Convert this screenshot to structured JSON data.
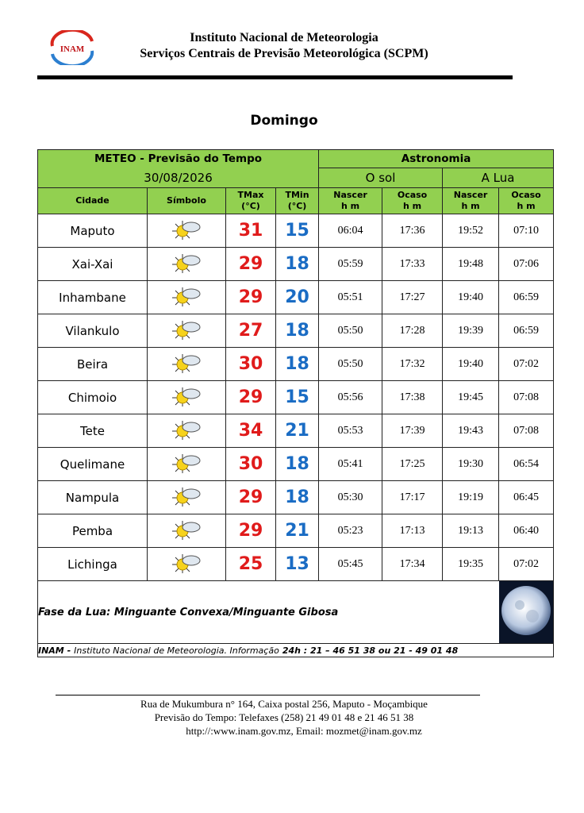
{
  "header": {
    "logo": "INAM",
    "line1": "Instituto Nacional de Meteorologia",
    "line2": "Serviços Centrais de Previsão Meteorológica (SCPM)"
  },
  "day": "Domingo",
  "table": {
    "meteo_title": "METEO - Previsão do Tempo",
    "date": "30/08/2026",
    "astro_title": "Astronomia",
    "sun": "O sol",
    "moon": "A Lua",
    "columns": [
      [
        "Cidade"
      ],
      [
        "Símbolo"
      ],
      [
        "TMax",
        "(°C)"
      ],
      [
        "TMin",
        "(°C)"
      ],
      [
        "Nascer",
        "h m"
      ],
      [
        "Ocaso",
        "h m"
      ],
      [
        "Nascer",
        "h m"
      ],
      [
        "Ocaso",
        "h m"
      ]
    ],
    "rows": [
      [
        "Maputo",
        31,
        15,
        "06:04",
        "17:36",
        "19:52",
        "07:10"
      ],
      [
        "Xai-Xai",
        29,
        18,
        "05:59",
        "17:33",
        "19:48",
        "07:06"
      ],
      [
        "Inhambane",
        29,
        20,
        "05:51",
        "17:27",
        "19:40",
        "06:59"
      ],
      [
        "Vilankulo",
        27,
        18,
        "05:50",
        "17:28",
        "19:39",
        "06:59"
      ],
      [
        "Beira",
        30,
        18,
        "05:50",
        "17:32",
        "19:40",
        "07:02"
      ],
      [
        "Chimoio",
        29,
        15,
        "05:56",
        "17:38",
        "19:45",
        "07:08"
      ],
      [
        "Tete",
        34,
        21,
        "05:53",
        "17:39",
        "19:43",
        "07:08"
      ],
      [
        "Quelimane",
        30,
        18,
        "05:41",
        "17:25",
        "19:30",
        "06:54"
      ],
      [
        "Nampula",
        29,
        18,
        "05:30",
        "17:17",
        "19:19",
        "06:45"
      ],
      [
        "Pemba",
        29,
        21,
        "05:23",
        "17:13",
        "19:13",
        "06:40"
      ],
      [
        "Lichinga",
        25,
        13,
        "05:45",
        "17:34",
        "19:35",
        "07:02"
      ]
    ]
  },
  "moon_phase": "Fase da Lua: Minguante Convexa/Minguante Gibosa",
  "footer_note": [
    "INAM -",
    "Instituto Nacional de Meteorologia. Informação",
    "24h : 21 – 46 51 38 ou 21 - 49 01 48"
  ],
  "address": [
    "Rua de Mukumbura n° 164, Caixa postal  256, Maputo -  Moçambique",
    "Previsão do Tempo: Telefaxes (258) 21 49 01 48 e  21 46 51 38",
    "http://:www.inam.gov.mz, Email: mozmet@inam.gov.mz"
  ]
}
